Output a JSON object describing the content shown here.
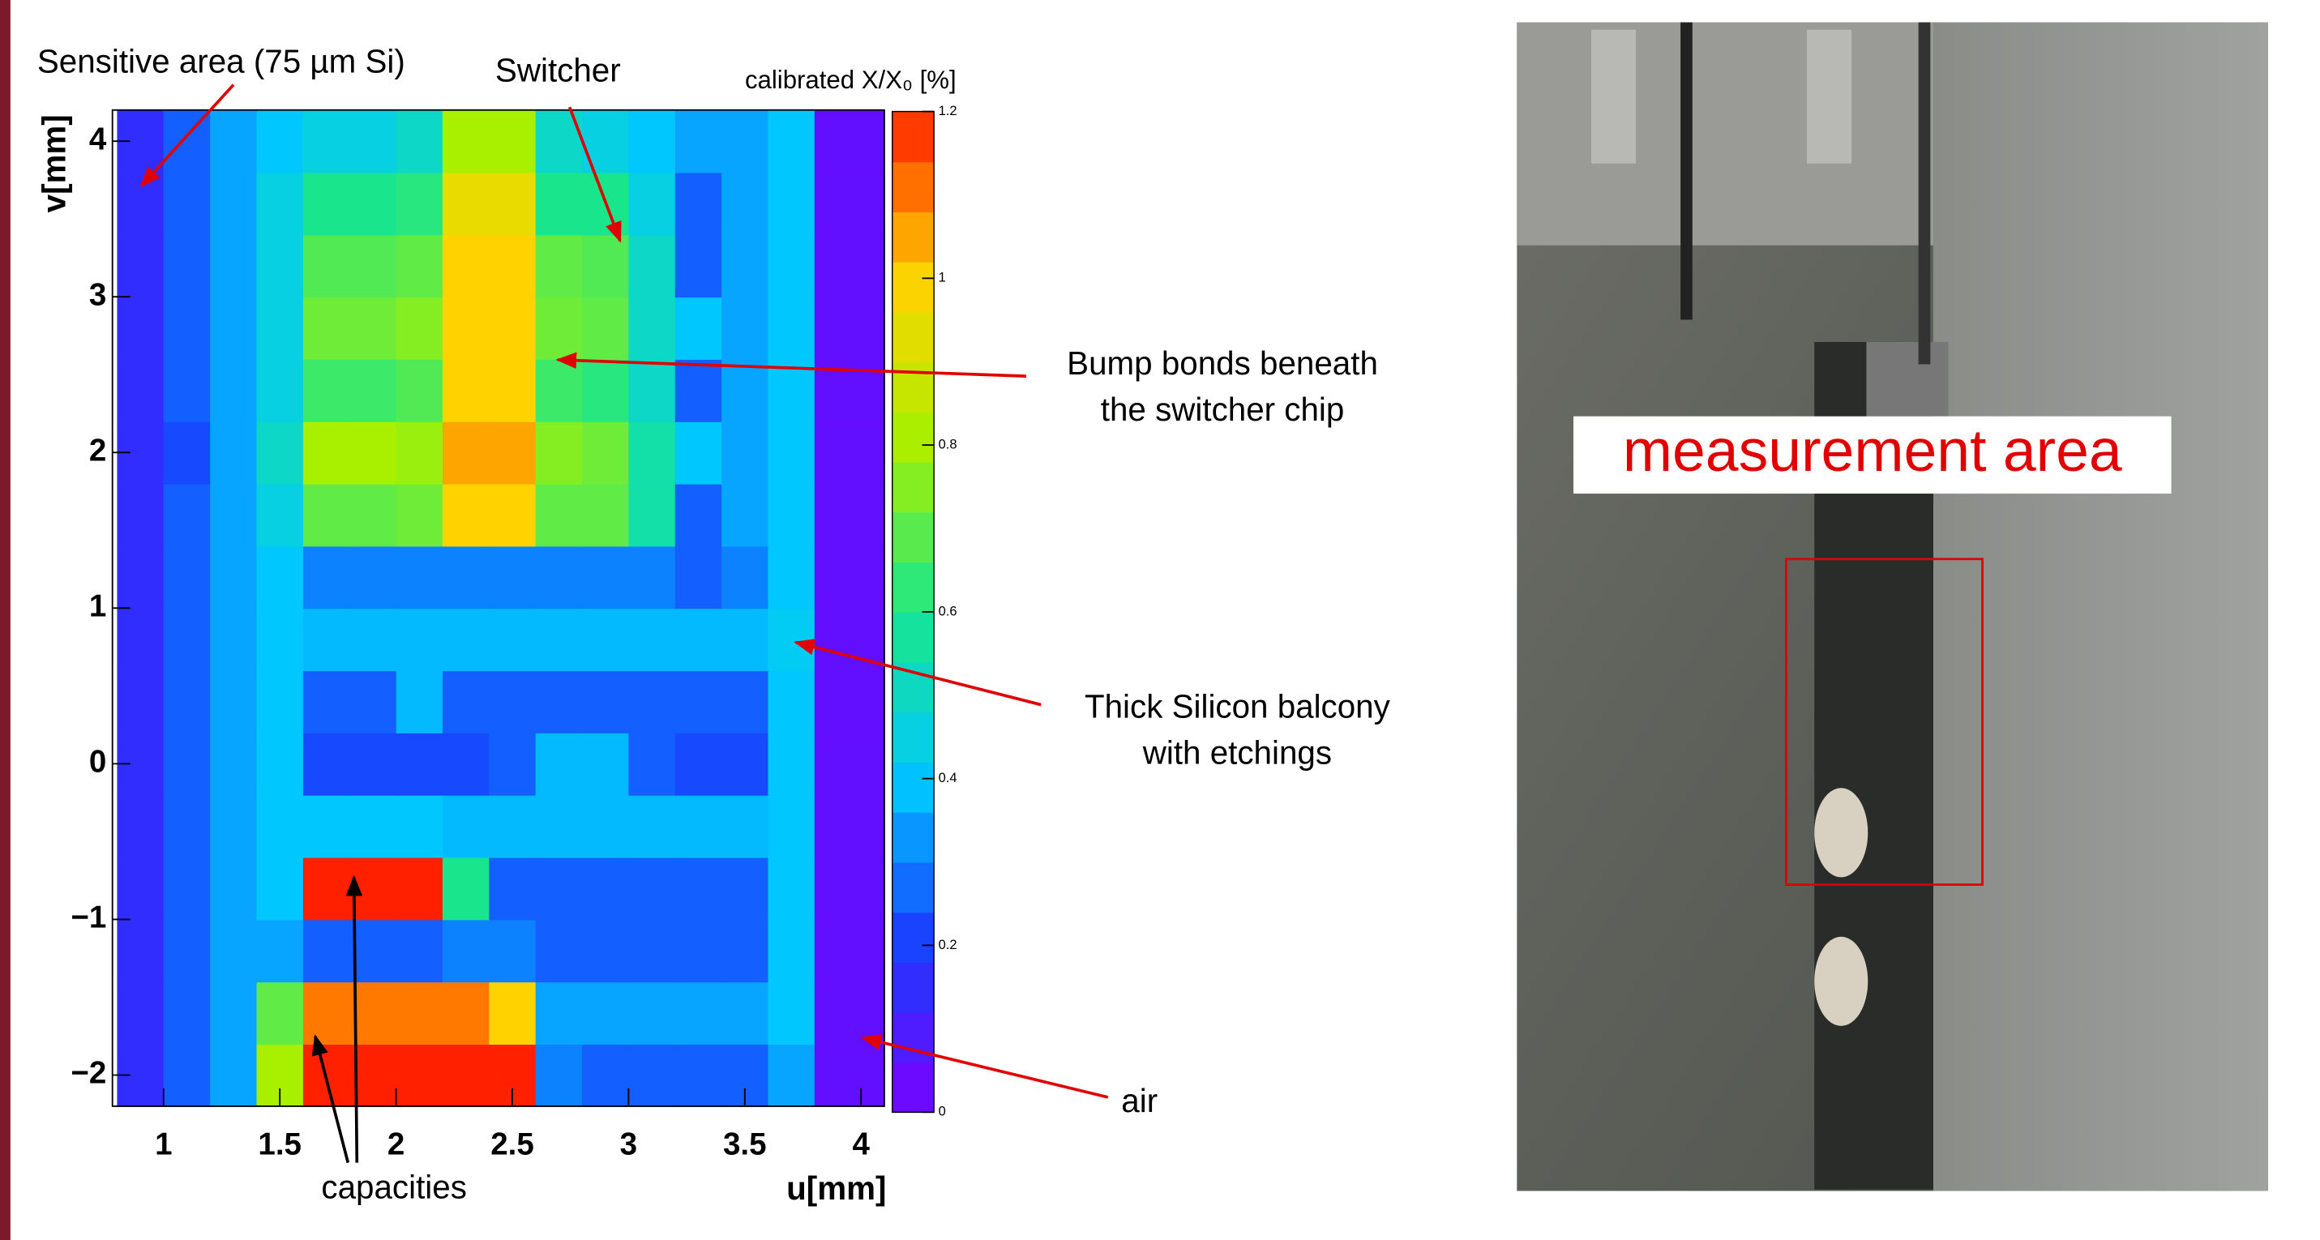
{
  "chart_data": {
    "type": "heatmap",
    "xlabel": "u[mm]",
    "ylabel": "v[mm]",
    "colorbar_title": "calibrated X/X₀ [%]",
    "xlim": [
      0.78,
      4.1
    ],
    "ylim": [
      -2.2,
      4.2
    ],
    "zlim": [
      0,
      1.2
    ],
    "xticks": [
      1,
      1.5,
      2,
      2.5,
      3,
      3.5,
      4
    ],
    "yticks": [
      {
        "value": -2,
        "label": "−2"
      },
      {
        "value": -1,
        "label": "−1"
      },
      0,
      1,
      2,
      3,
      4
    ],
    "zticks": [
      0,
      0.2,
      0.4,
      0.6,
      0.8,
      1,
      1.2
    ],
    "colorscale": [
      "#7b00ff",
      "#1a3cff",
      "#00c8ff",
      "#19e68c",
      "#a8f000",
      "#ffd200",
      "#ff2000"
    ],
    "xbins": [
      0.8,
      1.0,
      1.2,
      1.4,
      1.6,
      1.8,
      2.0,
      2.2,
      2.4,
      2.6,
      2.8,
      3.0,
      3.2,
      3.4,
      3.6,
      3.8,
      4.1
    ],
    "ybins": [
      -2.2,
      -1.8,
      -1.4,
      -1.0,
      -0.6,
      -0.2,
      0.2,
      0.6,
      1.0,
      1.4,
      1.8,
      2.2,
      2.6,
      3.0,
      3.4,
      3.8,
      4.2
    ],
    "z": [
      [
        0.15,
        0.25,
        0.35,
        0.8,
        1.2,
        1.2,
        1.2,
        1.2,
        1.2,
        0.3,
        0.25,
        0.25,
        0.25,
        0.25,
        0.35,
        0.05
      ],
      [
        0.15,
        0.25,
        0.35,
        0.7,
        1.1,
        1.1,
        1.1,
        1.1,
        1.0,
        0.35,
        0.35,
        0.35,
        0.35,
        0.35,
        0.4,
        0.05
      ],
      [
        0.15,
        0.25,
        0.35,
        0.35,
        0.25,
        0.25,
        0.25,
        0.3,
        0.3,
        0.25,
        0.25,
        0.25,
        0.25,
        0.25,
        0.4,
        0.05
      ],
      [
        0.15,
        0.25,
        0.35,
        0.4,
        1.2,
        1.2,
        1.2,
        0.6,
        0.25,
        0.25,
        0.25,
        0.25,
        0.25,
        0.25,
        0.4,
        0.05
      ],
      [
        0.15,
        0.25,
        0.35,
        0.4,
        0.4,
        0.4,
        0.4,
        0.38,
        0.38,
        0.38,
        0.38,
        0.38,
        0.38,
        0.38,
        0.4,
        0.05
      ],
      [
        0.15,
        0.25,
        0.35,
        0.4,
        0.22,
        0.22,
        0.22,
        0.22,
        0.25,
        0.38,
        0.38,
        0.25,
        0.22,
        0.22,
        0.4,
        0.05
      ],
      [
        0.15,
        0.25,
        0.35,
        0.4,
        0.25,
        0.25,
        0.38,
        0.25,
        0.25,
        0.25,
        0.25,
        0.25,
        0.25,
        0.25,
        0.4,
        0.05
      ],
      [
        0.15,
        0.25,
        0.35,
        0.4,
        0.38,
        0.38,
        0.38,
        0.38,
        0.38,
        0.38,
        0.38,
        0.38,
        0.38,
        0.38,
        0.42,
        0.05
      ],
      [
        0.15,
        0.25,
        0.35,
        0.4,
        0.3,
        0.3,
        0.3,
        0.3,
        0.3,
        0.3,
        0.3,
        0.3,
        0.25,
        0.3,
        0.4,
        0.05
      ],
      [
        0.15,
        0.25,
        0.35,
        0.45,
        0.7,
        0.7,
        0.72,
        1.0,
        1.0,
        0.7,
        0.7,
        0.55,
        0.25,
        0.35,
        0.4,
        0.05
      ],
      [
        0.15,
        0.22,
        0.35,
        0.5,
        0.8,
        0.8,
        0.78,
        1.05,
        1.05,
        0.75,
        0.72,
        0.55,
        0.4,
        0.35,
        0.4,
        0.05
      ],
      [
        0.15,
        0.25,
        0.35,
        0.45,
        0.65,
        0.65,
        0.68,
        1.0,
        1.0,
        0.65,
        0.62,
        0.5,
        0.25,
        0.35,
        0.4,
        0.05
      ],
      [
        0.15,
        0.25,
        0.35,
        0.45,
        0.72,
        0.72,
        0.75,
        1.0,
        1.0,
        0.72,
        0.7,
        0.5,
        0.4,
        0.35,
        0.4,
        0.05
      ],
      [
        0.15,
        0.25,
        0.35,
        0.45,
        0.68,
        0.68,
        0.7,
        1.0,
        1.0,
        0.7,
        0.68,
        0.5,
        0.25,
        0.35,
        0.4,
        0.05
      ],
      [
        0.15,
        0.25,
        0.35,
        0.45,
        0.6,
        0.6,
        0.62,
        0.95,
        0.95,
        0.6,
        0.6,
        0.45,
        0.25,
        0.35,
        0.4,
        0.05
      ],
      [
        0.15,
        0.25,
        0.35,
        0.4,
        0.45,
        0.45,
        0.5,
        0.8,
        0.8,
        0.5,
        0.45,
        0.4,
        0.35,
        0.35,
        0.4,
        0.05
      ]
    ],
    "annotations": [
      {
        "text": [
          "Sensitive area (75 µm Si)"
        ]
      },
      {
        "text": [
          "Switcher"
        ]
      },
      {
        "text": [
          "Bump bonds beneath",
          "the switcher chip"
        ]
      },
      {
        "text": [
          "Thick Silicon balcony",
          "with etchings"
        ]
      },
      {
        "text": [
          "air"
        ]
      },
      {
        "text": [
          "capacities"
        ]
      }
    ]
  },
  "photo": {
    "label": "measurement area"
  }
}
